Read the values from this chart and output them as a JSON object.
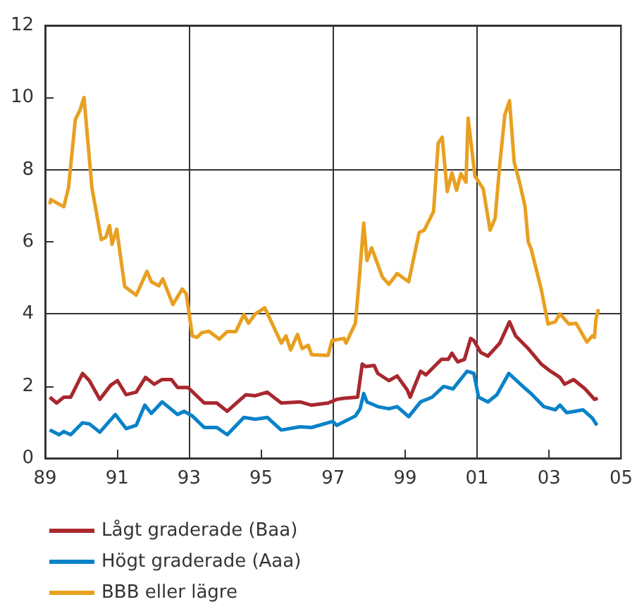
{
  "chart_data": {
    "type": "line",
    "xlim": [
      1989,
      2005
    ],
    "xticks": [
      {
        "value": 1989,
        "label": "89"
      },
      {
        "value": 1991,
        "label": "91"
      },
      {
        "value": 1993,
        "label": "93"
      },
      {
        "value": 1995,
        "label": "95"
      },
      {
        "value": 1997,
        "label": "97"
      },
      {
        "value": 1999,
        "label": "99"
      },
      {
        "value": 2001,
        "label": "01"
      },
      {
        "value": 2003,
        "label": "03"
      },
      {
        "value": 2005,
        "label": "05"
      }
    ],
    "ylim": [
      0,
      12
    ],
    "yticks": [
      0,
      2,
      4,
      6,
      8,
      10,
      12
    ],
    "grid": true,
    "legend": "bottom left",
    "marker": "none",
    "line_style": "solid",
    "series": [
      {
        "name": "Lågt graderade (Baa)",
        "color": "#a8282e",
        "x": [
          1989.13,
          1989.32,
          1989.52,
          1989.71,
          1990.04,
          1990.23,
          1990.52,
          1990.82,
          1991.01,
          1991.25,
          1991.53,
          1991.79,
          1992.03,
          1992.25,
          1992.51,
          1992.68,
          1992.97,
          1993.42,
          1993.77,
          1994.06,
          1994.58,
          1994.84,
          1995.17,
          1995.56,
          1996.08,
          1996.4,
          1996.86,
          1997.1,
          1997.3,
          1997.68,
          1997.81,
          1997.9,
          1998.14,
          1998.24,
          1998.55,
          1998.78,
          1999.06,
          1999.14,
          1999.43,
          1999.58,
          2000.01,
          2000.2,
          2000.3,
          2000.46,
          2000.65,
          2000.82,
          2000.91,
          2001.1,
          2001.3,
          2001.63,
          2001.9,
          2002.07,
          2002.4,
          2002.78,
          2003.04,
          2003.3,
          2003.43,
          2003.68,
          2004.0,
          2004.26,
          2004.35
        ],
        "values": [
          1.69,
          1.53,
          1.69,
          1.69,
          2.35,
          2.15,
          1.63,
          2.02,
          2.15,
          1.76,
          1.83,
          2.24,
          2.05,
          2.18,
          2.18,
          1.96,
          1.96,
          1.53,
          1.53,
          1.3,
          1.76,
          1.73,
          1.83,
          1.53,
          1.56,
          1.47,
          1.53,
          1.63,
          1.66,
          1.69,
          2.61,
          2.54,
          2.57,
          2.35,
          2.15,
          2.28,
          1.89,
          1.69,
          2.41,
          2.31,
          2.74,
          2.74,
          2.91,
          2.67,
          2.74,
          3.32,
          3.26,
          2.93,
          2.83,
          3.19,
          3.78,
          3.39,
          3.06,
          2.61,
          2.41,
          2.24,
          2.05,
          2.18,
          1.92,
          1.63,
          1.66
        ]
      },
      {
        "name": "Högt graderade (Aaa)",
        "color": "#0a82c8",
        "x": [
          1989.13,
          1989.39,
          1989.52,
          1989.71,
          1990.04,
          1990.23,
          1990.52,
          1990.95,
          1991.25,
          1991.53,
          1991.77,
          1991.95,
          1992.25,
          1992.68,
          1992.86,
          1993.09,
          1993.42,
          1993.77,
          1994.06,
          1994.52,
          1994.84,
          1995.17,
          1995.56,
          1996.08,
          1996.4,
          1996.99,
          1997.1,
          1997.62,
          1997.75,
          1997.85,
          1997.94,
          1998.24,
          1998.55,
          1998.78,
          1999.1,
          1999.43,
          1999.75,
          2000.07,
          2000.33,
          2000.72,
          2000.91,
          2001.04,
          2001.3,
          2001.55,
          2001.88,
          2002.27,
          2002.53,
          2002.85,
          2003.17,
          2003.3,
          2003.49,
          2003.94,
          2004.2,
          2004.33
        ],
        "values": [
          0.78,
          0.65,
          0.74,
          0.65,
          0.98,
          0.95,
          0.72,
          1.21,
          0.82,
          0.91,
          1.47,
          1.24,
          1.56,
          1.21,
          1.3,
          1.17,
          0.85,
          0.85,
          0.65,
          1.13,
          1.08,
          1.13,
          0.78,
          0.87,
          0.85,
          1.02,
          0.91,
          1.17,
          1.37,
          1.79,
          1.56,
          1.43,
          1.37,
          1.43,
          1.15,
          1.56,
          1.69,
          1.99,
          1.92,
          2.41,
          2.35,
          1.69,
          1.56,
          1.76,
          2.35,
          1.99,
          1.76,
          1.43,
          1.34,
          1.47,
          1.26,
          1.34,
          1.11,
          0.91
        ]
      },
      {
        "name": "BBB eller lägre",
        "color": "#e8a020",
        "x": [
          1989.13,
          1989.16,
          1989.52,
          1989.65,
          1989.84,
          1989.97,
          1990.08,
          1990.3,
          1990.56,
          1990.69,
          1990.79,
          1990.86,
          1990.99,
          1991.21,
          1991.53,
          1991.83,
          1991.95,
          1992.16,
          1992.27,
          1992.55,
          1992.81,
          1992.92,
          1993.09,
          1993.22,
          1993.35,
          1993.55,
          1993.84,
          1994.06,
          1994.3,
          1994.52,
          1994.65,
          1994.84,
          1995.1,
          1995.56,
          1995.69,
          1995.82,
          1996.01,
          1996.14,
          1996.31,
          1996.4,
          1996.86,
          1996.97,
          1997.3,
          1997.36,
          1997.62,
          1997.72,
          1997.85,
          1997.94,
          1998.07,
          1998.37,
          1998.55,
          1998.78,
          1999.1,
          1999.39,
          1999.53,
          1999.79,
          1999.92,
          2000.03,
          2000.17,
          2000.3,
          2000.43,
          2000.55,
          2000.69,
          2000.75,
          2000.94,
          2001.17,
          2001.36,
          2001.5,
          2001.63,
          2001.77,
          2001.9,
          2002.03,
          2002.2,
          2002.33,
          2002.42,
          2002.5,
          2002.78,
          2002.97,
          2003.17,
          2003.3,
          2003.55,
          2003.75,
          2004.05,
          2004.2,
          2004.26,
          2004.3,
          2004.37
        ],
        "values": [
          7.04,
          7.17,
          6.97,
          7.5,
          9.39,
          9.65,
          10.0,
          7.5,
          6.06,
          6.13,
          6.45,
          5.93,
          6.35,
          4.76,
          4.52,
          5.18,
          4.89,
          4.78,
          4.97,
          4.26,
          4.69,
          4.56,
          3.39,
          3.35,
          3.48,
          3.52,
          3.3,
          3.51,
          3.51,
          3.98,
          3.74,
          4.0,
          4.17,
          3.19,
          3.39,
          3.0,
          3.43,
          3.04,
          3.13,
          2.87,
          2.85,
          3.26,
          3.32,
          3.19,
          3.74,
          4.89,
          6.52,
          5.48,
          5.83,
          5.02,
          4.82,
          5.12,
          4.89,
          6.26,
          6.32,
          6.84,
          8.74,
          8.9,
          7.39,
          7.91,
          7.43,
          7.89,
          7.65,
          9.43,
          7.82,
          7.47,
          6.32,
          6.65,
          8.15,
          9.52,
          9.91,
          8.21,
          7.56,
          6.98,
          6.0,
          5.8,
          4.69,
          3.72,
          3.78,
          4.0,
          3.72,
          3.74,
          3.22,
          3.39,
          3.35,
          3.85,
          4.13
        ]
      }
    ]
  }
}
